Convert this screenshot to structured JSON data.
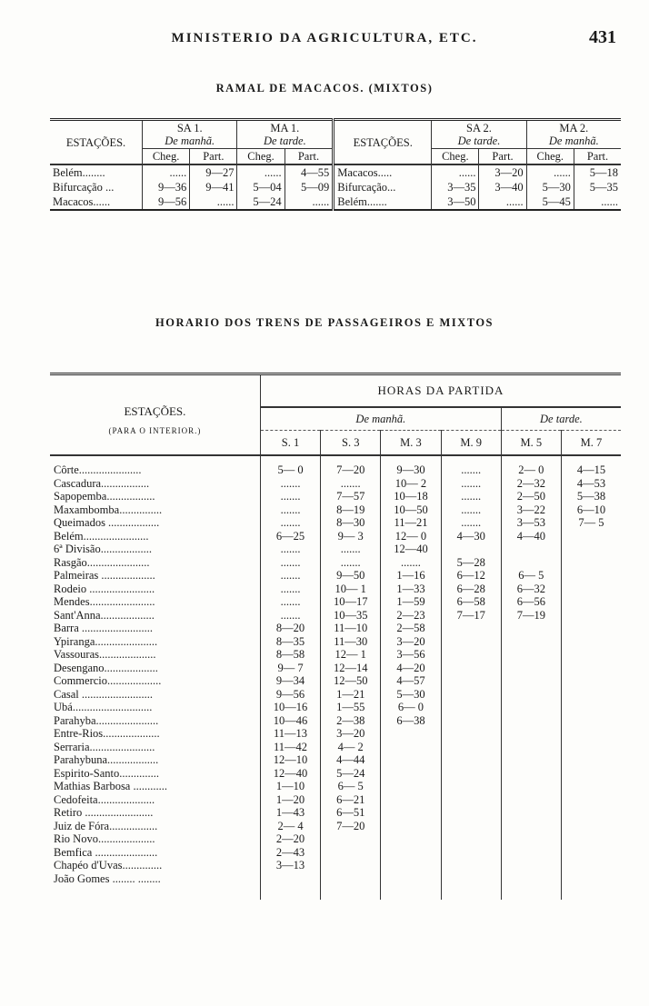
{
  "header": {
    "title": "MINISTERIO DA AGRICULTURA, ETC.",
    "page_number": "431"
  },
  "ramal": {
    "title": "RAMAL DE MACACOS. (MIXTOS)",
    "stations_label": "ESTAÇÕES.",
    "left_trains": [
      {
        "name": "SA 1.",
        "period": "De manhã."
      },
      {
        "name": "MA 1.",
        "period": "De tarde."
      }
    ],
    "right_trains": [
      {
        "name": "SA 2.",
        "period": "De tarde."
      },
      {
        "name": "MA 2.",
        "period": "De manhã."
      }
    ],
    "cheg": "Cheg.",
    "part": "Part.",
    "left_rows": [
      {
        "station": "Belém........",
        "v": [
          "......",
          "9—27",
          "......",
          "4—55"
        ]
      },
      {
        "station": "Bifurcação ...",
        "v": [
          "9—36",
          "9—41",
          "5—04",
          "5—09"
        ]
      },
      {
        "station": "Macacos......",
        "v": [
          "9—56",
          "......",
          "5—24",
          "......"
        ]
      }
    ],
    "right_rows": [
      {
        "station": "Macacos.....",
        "v": [
          "......",
          "3—20",
          "......",
          "5—18"
        ]
      },
      {
        "station": "Bifurcação...",
        "v": [
          "3—35",
          "3—40",
          "5—30",
          "5—35"
        ]
      },
      {
        "station": "Belém.......",
        "v": [
          "3—50",
          "......",
          "5—45",
          "......"
        ]
      }
    ]
  },
  "horario": {
    "title": "HORARIO DOS TRENS DE PASSAGEIROS E MIXTOS",
    "stations_label": "ESTAÇÕES.",
    "direction": "(PARA O INTERIOR.)",
    "hours_label": "HORAS DA PARTIDA",
    "morning": "De manhã.",
    "afternoon": "De tarde.",
    "columns": [
      "S. 1",
      "S. 3",
      "M. 3",
      "M. 9",
      "M. 5",
      "M. 7"
    ],
    "rows": [
      {
        "station": "Côrte......................",
        "v": [
          "5— 0",
          "7—20",
          "9—30",
          ".......",
          "2— 0",
          "4—15"
        ]
      },
      {
        "station": "Cascadura.................",
        "v": [
          ".......",
          ".......",
          "10— 2",
          ".......",
          "2—32",
          "4—53"
        ]
      },
      {
        "station": "Sapopemba.................",
        "v": [
          ".......",
          "7—57",
          "10—18",
          ".......",
          "2—50",
          "5—38"
        ]
      },
      {
        "station": "Maxambomba...............",
        "v": [
          ".......",
          "8—19",
          "10—50",
          ".......",
          "3—22",
          "6—10"
        ]
      },
      {
        "station": "Queimados ..................",
        "v": [
          ".......",
          "8—30",
          "11—21",
          ".......",
          "3—53",
          "7— 5"
        ]
      },
      {
        "station": "Belém.......................",
        "v": [
          "6—25",
          "9— 3",
          "12— 0",
          "4—30",
          "4—40",
          ""
        ]
      },
      {
        "station": "6ª Divisão..................",
        "v": [
          ".......",
          ".......",
          "12—40",
          "",
          "",
          ""
        ]
      },
      {
        "station": "Rasgão......................",
        "v": [
          ".......",
          ".......",
          ".......",
          "5—28",
          "",
          ""
        ]
      },
      {
        "station": "Palmeiras ...................",
        "v": [
          ".......",
          "9—50",
          "1—16",
          "6—12",
          "6— 5",
          ""
        ]
      },
      {
        "station": "Rodeio .......................",
        "v": [
          ".......",
          "10— 1",
          "1—33",
          "6—28",
          "6—32",
          ""
        ]
      },
      {
        "station": "Mendes.......................",
        "v": [
          ".......",
          "10—17",
          "1—59",
          "6—58",
          "6—56",
          ""
        ]
      },
      {
        "station": "Sant'Anna...................",
        "v": [
          ".......",
          "10—35",
          "2—23",
          "7—17",
          "7—19",
          ""
        ]
      },
      {
        "station": "Barra .........................",
        "v": [
          "8—20",
          "11—10",
          "2—58",
          "",
          "",
          ""
        ]
      },
      {
        "station": "Ypiranga......................",
        "v": [
          "8—35",
          "11—30",
          "3—20",
          "",
          "",
          ""
        ]
      },
      {
        "station": "Vassouras....................",
        "v": [
          "8—58",
          "12— 1",
          "3—56",
          "",
          "",
          ""
        ]
      },
      {
        "station": "Desengano...................",
        "v": [
          "9— 7",
          "12—14",
          "4—20",
          "",
          "",
          ""
        ]
      },
      {
        "station": "Commercio...................",
        "v": [
          "9—34",
          "12—50",
          "4—57",
          "",
          "",
          ""
        ]
      },
      {
        "station": "Casal .........................",
        "v": [
          "9—56",
          "1—21",
          "5—30",
          "",
          "",
          ""
        ]
      },
      {
        "station": "Ubá............................",
        "v": [
          "10—16",
          "1—55",
          "6— 0",
          "",
          "",
          ""
        ]
      },
      {
        "station": "Parahyba......................",
        "v": [
          "10—46",
          "2—38",
          "6—38",
          "",
          "",
          ""
        ]
      },
      {
        "station": "Entre-Rios....................",
        "v": [
          "11—13",
          "3—20",
          "",
          "",
          "",
          ""
        ]
      },
      {
        "station": "Serraria.......................",
        "v": [
          "11—42",
          "4— 2",
          "",
          "",
          "",
          ""
        ]
      },
      {
        "station": "Parahybuna..................",
        "v": [
          "12—10",
          "4—44",
          "",
          "",
          "",
          ""
        ]
      },
      {
        "station": "Espirito-Santo..............",
        "v": [
          "12—40",
          "5—24",
          "",
          "",
          "",
          ""
        ]
      },
      {
        "station": "Mathias Barbosa ............",
        "v": [
          "1—10",
          "6— 5",
          "",
          "",
          "",
          ""
        ]
      },
      {
        "station": "Cedofeita....................",
        "v": [
          "1—20",
          "6—21",
          "",
          "",
          "",
          ""
        ]
      },
      {
        "station": "Retiro ........................",
        "v": [
          "1—43",
          "6—51",
          "",
          "",
          "",
          ""
        ]
      },
      {
        "station": "Juiz de Fóra.................",
        "v": [
          "2— 4",
          "7—20",
          "",
          "",
          "",
          ""
        ]
      },
      {
        "station": "Rio  Novo....................",
        "v": [
          "2—20",
          "",
          "",
          "",
          "",
          ""
        ]
      },
      {
        "station": "Bemfica ......................",
        "v": [
          "2—43",
          "",
          "",
          "",
          "",
          ""
        ]
      },
      {
        "station": "Chapéo  d'Uvas..............",
        "v": [
          "3—13",
          "",
          "",
          "",
          "",
          ""
        ]
      },
      {
        "station": "João Gomes  ........ ........",
        "v": [
          "",
          "",
          "",
          "",
          "",
          ""
        ]
      }
    ]
  }
}
